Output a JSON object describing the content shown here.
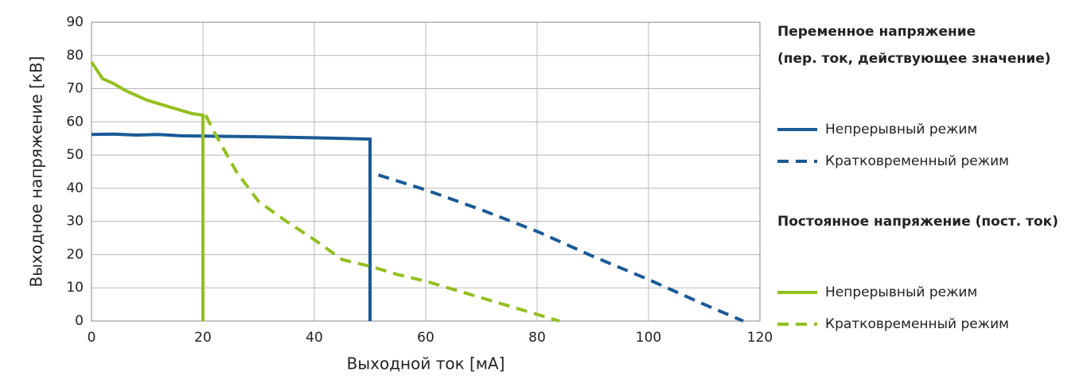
{
  "chart_data": {
    "type": "line",
    "x_label": "Выходной ток [мА]",
    "y_label": "Выходное напряжение [кВ]",
    "xlim": [
      0,
      120
    ],
    "xticks": [
      0,
      20,
      40,
      60,
      80,
      100,
      120
    ],
    "ylim": [
      0,
      90
    ],
    "yticks": [
      0,
      10,
      20,
      30,
      40,
      50,
      60,
      70,
      80,
      90
    ],
    "grid": true,
    "legend_position": "right",
    "legend_groups": [
      {
        "title": [
          "Переменное напряжение",
          "(пер. ток, действующее значение)"
        ]
      },
      {
        "title": [
          "Постоянное напряжение (пост. ток)"
        ]
      }
    ],
    "series": [
      {
        "name": "Непрерывный режим",
        "group": 0,
        "dashed": false,
        "color": "#1a5a96",
        "x": [
          0,
          4,
          8,
          12,
          16,
          20,
          30,
          40,
          50,
          50
        ],
        "values": [
          56.2,
          56.3,
          56,
          56.2,
          55.8,
          55.7,
          55.5,
          55.2,
          54.8,
          0
        ]
      },
      {
        "name": "Кратковременный режим",
        "group": 0,
        "dashed": true,
        "color": "#1a5a96",
        "x": [
          51.5,
          60,
          70,
          80,
          90,
          100,
          110,
          117
        ],
        "values": [
          44,
          39.5,
          33.5,
          27,
          19.5,
          12.5,
          5,
          0
        ]
      },
      {
        "name": "Непрерывный режим",
        "group": 1,
        "dashed": false,
        "color": "#93c01f",
        "x": [
          0,
          2,
          4,
          6,
          10,
          14,
          18,
          20,
          20
        ],
        "values": [
          78,
          73,
          71.5,
          69.5,
          66.5,
          64.5,
          62.5,
          62,
          0
        ]
      },
      {
        "name": "Кратковременный режим",
        "group": 1,
        "dashed": true,
        "color": "#93c01f",
        "x": [
          20.5,
          22,
          26,
          30,
          35,
          40,
          45,
          50,
          55,
          60,
          70,
          80,
          84
        ],
        "values": [
          62,
          57,
          45,
          36,
          30,
          24.5,
          18.5,
          16.5,
          14,
          12,
          7,
          2,
          0
        ]
      }
    ]
  }
}
